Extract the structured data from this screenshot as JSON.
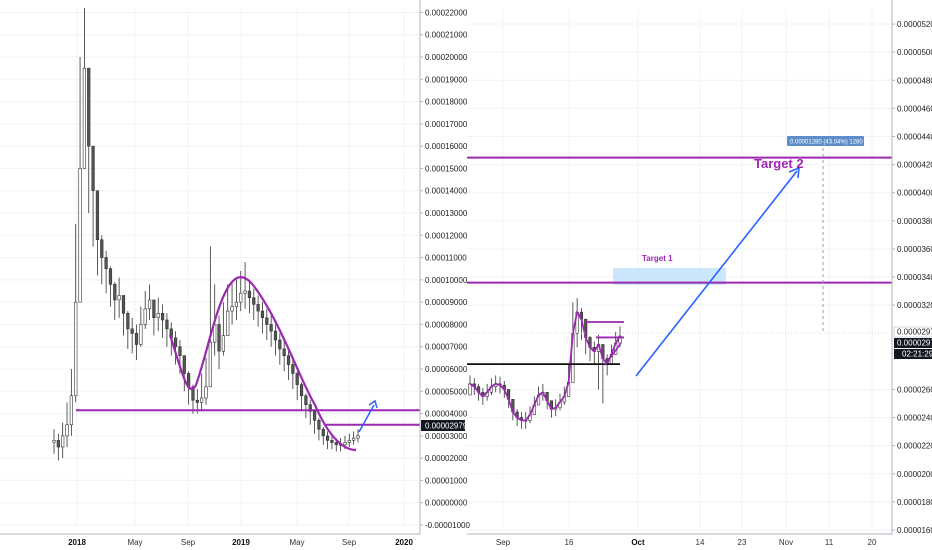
{
  "colors": {
    "background": "#ffffff",
    "grid": "#f0f3fa",
    "axis_line": "#b2b5be",
    "candle_up": "#ffffff",
    "candle_down": "#555555",
    "candle_outline": "#333333",
    "purple": "#9c27b0",
    "blue_arrow": "#2962ff",
    "price_tag_bg": "#131722",
    "price_tag_text": "#ffffff",
    "measure_bg": "#5d8ec9",
    "target_box": "#bbdefb"
  },
  "chart_data": [
    {
      "type": "candlestick",
      "panel": "left",
      "ylim": [
        -1e-05,
        0.000222
      ],
      "y_ticks": [
        "0.00022000",
        "0.00021000",
        "0.00020000",
        "0.00019000",
        "0.00018000",
        "0.00017000",
        "0.00016000",
        "0.00015000",
        "0.00014000",
        "0.00013000",
        "0.00012000",
        "0.00011000",
        "0.00010000",
        "0.00009000",
        "0.00008000",
        "0.00007000",
        "0.00006000",
        "0.00005000",
        "0.00004000",
        "0.00003000",
        "0.00002000",
        "0.00001000",
        "0.00000000",
        "-0.00001000"
      ],
      "y_tick_values": [
        0.00022,
        0.00021,
        0.0002,
        0.00019,
        0.00018,
        0.00017,
        0.00016,
        0.00015,
        0.00014,
        0.00013,
        0.00012,
        0.00011,
        0.0001,
        9e-05,
        8e-05,
        7e-05,
        6e-05,
        5e-05,
        4e-05,
        3e-05,
        2e-05,
        1e-05,
        0,
        -1e-05
      ],
      "x_ticks": [
        {
          "label": "2018",
          "bold": true
        },
        {
          "label": "May",
          "bold": false
        },
        {
          "label": "Sep",
          "bold": false
        },
        {
          "label": "2019",
          "bold": true
        },
        {
          "label": "May",
          "bold": false
        },
        {
          "label": "Sep",
          "bold": false
        },
        {
          "label": "2020",
          "bold": true
        }
      ],
      "last_price_label": "0.00002979",
      "last_price": 2.979e-05,
      "series": [
        {
          "name": "",
          "x_start": "2017-11",
          "close": [
            2.8e-05,
            2.5e-05,
            3e-05,
            3.5e-05,
            4.8e-05,
            9e-05,
            0.00015,
            0.000195,
            0.00016,
            0.00014,
            0.000118,
            0.00011,
            0.000105,
            9.8e-05,
            9.1e-05,
            9.3e-05,
            8.5e-05,
            7.8e-05,
            7.6e-05,
            7.1e-05,
            8e-05,
            8.7e-05,
            9.1e-05,
            8.3e-05,
            8.5e-05,
            8.2e-05,
            7.8e-05,
            7.4e-05,
            7e-05,
            6.6e-05,
            5.8e-05,
            5.2e-05,
            4.6e-05,
            4.5e-05,
            4.7e-05,
            5.2e-05,
            7.2e-05,
            8e-05,
            6.8e-05,
            7.5e-05,
            8.6e-05,
            8.8e-05,
            9e-05,
            9.4e-05,
            9.5e-05,
            9.2e-05,
            8.9e-05,
            8.6e-05,
            8.3e-05,
            8e-05,
            7.7e-05,
            7.3e-05,
            6.9e-05,
            6.6e-05,
            6.2e-05,
            5.8e-05,
            5.3e-05,
            4.8e-05,
            4.4e-05,
            4.1e-05,
            3.7e-05,
            3.3e-05,
            3e-05,
            2.8e-05,
            2.7e-05,
            2.6e-05,
            2.6e-05,
            2.7e-05,
            2.8e-05,
            2.9e-05,
            3e-05
          ],
          "high": [
            3.3e-05,
            3.1e-05,
            3.6e-05,
            4.5e-05,
            6e-05,
            0.000125,
            0.0002,
            0.000222,
            0.00018,
            0.000155,
            0.000128,
            0.00012,
            0.000113,
            0.000106,
            9.9e-05,
            0.000101,
            9.3e-05,
            8.6e-05,
            8.3e-05,
            8e-05,
            8.8e-05,
            9.5e-05,
            9.8e-05,
            9.1e-05,
            9.2e-05,
            8.9e-05,
            8.5e-05,
            8.1e-05,
            7.7e-05,
            7.3e-05,
            6.5e-05,
            5.9e-05,
            5.3e-05,
            5.1e-05,
            5.8e-05,
            6.5e-05,
            0.000115,
            9.8e-05,
            8.4e-05,
            9e-05,
            9.8e-05,
            9.9e-05,
            0.000101,
            0.000104,
            0.000108,
            0.0001,
            9.6e-05,
            9.3e-05,
            9e-05,
            8.7e-05,
            8.4e-05,
            8e-05,
            7.6e-05,
            7.3e-05,
            6.8e-05,
            6.4e-05,
            5.9e-05,
            5.4e-05,
            4.9e-05,
            4.6e-05,
            4.2e-05,
            3.8e-05,
            3.4e-05,
            3.2e-05,
            3e-05,
            2.9e-05,
            2.9e-05,
            3e-05,
            3.1e-05,
            3.2e-05,
            3.3e-05
          ],
          "low": [
            2.2e-05,
            1.9e-05,
            2e-05,
            2.5e-05,
            3e-05,
            4.5e-05,
            9.5e-05,
            0.00015,
            0.00013,
            0.000115,
            0.000102,
            9.8e-05,
            9.4e-05,
            8.8e-05,
            8.2e-05,
            8.3e-05,
            7.5e-05,
            6.9e-05,
            6.7e-05,
            6.4e-05,
            7e-05,
            7.8e-05,
            8.2e-05,
            7.5e-05,
            7.7e-05,
            7.4e-05,
            7e-05,
            6.6e-05,
            6.2e-05,
            5.8e-05,
            5e-05,
            4.4e-05,
            4e-05,
            4e-05,
            4.1e-05,
            4.4e-05,
            6e-05,
            6.6e-05,
            6e-05,
            6.6e-05,
            7.7e-05,
            8e-05,
            8.2e-05,
            8.6e-05,
            8.7e-05,
            8.5e-05,
            8.2e-05,
            7.9e-05,
            7.6e-05,
            7.3e-05,
            7e-05,
            6.6e-05,
            6.2e-05,
            5.9e-05,
            5.5e-05,
            5.1e-05,
            4.6e-05,
            4.1e-05,
            3.8e-05,
            3.5e-05,
            3.1e-05,
            2.8e-05,
            2.6e-05,
            2.4e-05,
            2.4e-05,
            2.3e-05,
            2.3e-05,
            2.4e-05,
            2.5e-05,
            2.6e-05,
            2.7e-05
          ]
        }
      ],
      "annotations": {
        "rounding_curve": {
          "color": "purple"
        },
        "horizontal_lines": [
          {
            "price": 4.15e-05,
            "color": "purple"
          },
          {
            "price": 3.5e-05,
            "color": "purple"
          }
        ],
        "arrow": {
          "color": "blue_arrow"
        }
      }
    },
    {
      "type": "candlestick",
      "panel": "right",
      "ylim": [
        1.6e-05,
        5.3e-05
      ],
      "y_ticks": [
        "0.00005200",
        "0.00005000",
        "0.00004800",
        "0.00004600",
        "0.00004400",
        "0.00004200",
        "0.00004000",
        "0.00003800",
        "0.00003600",
        "0.00003400",
        "0.00003200",
        "0.00002600",
        "0.00002400",
        "0.00002200",
        "0.00002000",
        "0.00001800",
        "0.00001600"
      ],
      "y_tick_values": [
        5.2e-05,
        5e-05,
        4.8e-05,
        4.6e-05,
        4.4e-05,
        4.2e-05,
        4e-05,
        3.8e-05,
        3.6e-05,
        3.4e-05,
        3.2e-05,
        2.6e-05,
        2.4e-05,
        2.2e-05,
        2e-05,
        1.8e-05,
        1.6e-05
      ],
      "x_ticks": [
        {
          "label": "Sep",
          "bold": false
        },
        {
          "label": "16",
          "bold": false
        },
        {
          "label": "Oct",
          "bold": true
        },
        {
          "label": "14",
          "bold": false
        },
        {
          "label": "23",
          "bold": false
        },
        {
          "label": "Nov",
          "bold": false
        },
        {
          "label": "11",
          "bold": false
        },
        {
          "label": "20",
          "bold": false
        }
      ],
      "price_labels": [
        "0.00002977",
        "0.00002974",
        "02:21:29"
      ],
      "target_labels": {
        "target1": "Target 1",
        "target2": "Target 2"
      },
      "measure_label": "0.00001280 (43.04%) 1280",
      "series": [
        {
          "name": "",
          "close": [
            2.64e-05,
            2.62e-05,
            2.58e-05,
            2.55e-05,
            2.58e-05,
            2.62e-05,
            2.64e-05,
            2.63e-05,
            2.6e-05,
            2.53e-05,
            2.44e-05,
            2.4e-05,
            2.38e-05,
            2.38e-05,
            2.42e-05,
            2.49e-05,
            2.56e-05,
            2.58e-05,
            2.52e-05,
            2.46e-05,
            2.47e-05,
            2.51e-05,
            2.55e-05,
            2.65e-05,
            3e-05,
            3.15e-05,
            3.1e-05,
            2.97e-05,
            2.9e-05,
            2.87e-05,
            2.92e-05,
            2.82e-05,
            2.78e-05,
            2.85e-05,
            2.93e-05,
            2.98e-05
          ],
          "high": [
            2.7e-05,
            2.68e-05,
            2.64e-05,
            2.61e-05,
            2.64e-05,
            2.68e-05,
            2.7e-05,
            2.69e-05,
            2.66e-05,
            2.59e-05,
            2.5e-05,
            2.46e-05,
            2.44e-05,
            2.44e-05,
            2.48e-05,
            2.55e-05,
            2.62e-05,
            2.64e-05,
            2.58e-05,
            2.52e-05,
            2.53e-05,
            2.57e-05,
            2.62e-05,
            2.78e-05,
            3.22e-05,
            3.25e-05,
            3.18e-05,
            3.05e-05,
            2.98e-05,
            2.94e-05,
            2.99e-05,
            2.9e-05,
            2.85e-05,
            2.92e-05,
            3.01e-05,
            3.05e-05
          ],
          "low": [
            2.58e-05,
            2.56e-05,
            2.52e-05,
            2.49e-05,
            2.52e-05,
            2.56e-05,
            2.58e-05,
            2.57e-05,
            2.54e-05,
            2.47e-05,
            2.38e-05,
            2.34e-05,
            2.32e-05,
            2.32e-05,
            2.36e-05,
            2.43e-05,
            2.5e-05,
            2.52e-05,
            2.46e-05,
            2.4e-05,
            2.41e-05,
            2.45e-05,
            2.49e-05,
            2.58e-05,
            2.72e-05,
            2.9e-05,
            2.95e-05,
            2.85e-05,
            2.8e-05,
            2.78e-05,
            2.6e-05,
            2.5e-05,
            2.7e-05,
            2.78e-05,
            2.86e-05,
            2.9e-05
          ]
        }
      ],
      "annotations": {
        "horizontal_lines": [
          {
            "price": 4.25e-05,
            "color": "purple",
            "label": "Target 2"
          },
          {
            "price": 3.36e-05,
            "color": "purple",
            "label": "Target 1"
          },
          {
            "price": 2.78e-05,
            "color": "#111111"
          },
          {
            "price": 3.08e-05,
            "color": "purple"
          },
          {
            "price": 2.97e-05,
            "color": "purple"
          }
        ],
        "arrow": {
          "color": "blue_arrow"
        }
      }
    }
  ]
}
